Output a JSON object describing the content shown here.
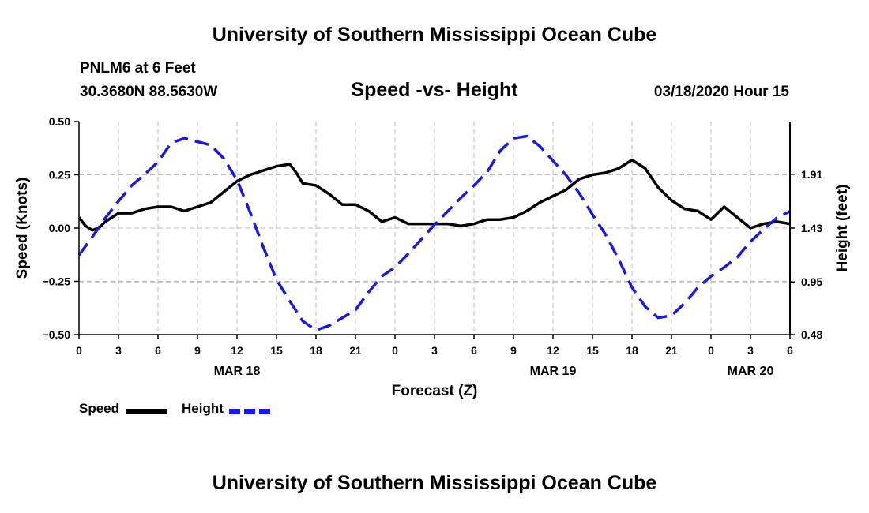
{
  "header": {
    "title": "University of Southern Mississippi Ocean Cube",
    "station": "PNLM6 at 6 Feet",
    "coordinates": "30.3680N 88.5630W",
    "chart_title": "Speed -vs- Height",
    "timestamp": "03/18/2020 Hour 15"
  },
  "footer": {
    "title": "University of Southern Mississippi Ocean Cube"
  },
  "legend": {
    "speed_label": "Speed",
    "height_label": "Height"
  },
  "colors": {
    "speed": "#000000",
    "height": "#1a1adc",
    "grid": "#bbbbbb"
  },
  "chart_data": {
    "type": "line",
    "title": "Speed -vs- Height",
    "xlabel": "Forecast (Z)",
    "ylabel": "Speed (Knots)",
    "ylabel_right": "Height (feet)",
    "x_unit": "hours since 2020-03-18 00Z",
    "xlim": [
      0,
      54
    ],
    "ylim": [
      -0.5,
      0.5
    ],
    "ylim_right": [
      0.48,
      2.38
    ],
    "x_ticks": [
      0,
      3,
      6,
      9,
      12,
      15,
      18,
      21,
      24,
      27,
      30,
      33,
      36,
      39,
      42,
      45,
      48,
      51,
      54
    ],
    "x_tick_labels": [
      "0",
      "3",
      "6",
      "9",
      "12",
      "15",
      "18",
      "21",
      "0",
      "3",
      "6",
      "9",
      "12",
      "15",
      "18",
      "21",
      "0",
      "3",
      "6"
    ],
    "date_labels": [
      {
        "x": 12,
        "label": "MAR 18"
      },
      {
        "x": 36,
        "label": "MAR 19"
      },
      {
        "x": 51,
        "label": "MAR 20"
      }
    ],
    "y_ticks": [
      -0.5,
      -0.25,
      0,
      0.25,
      0.5
    ],
    "y_tick_labels": [
      "-0.50",
      "-0.25",
      "0.00",
      "0.25",
      "0.50"
    ],
    "y_ticks_right": [
      0.48,
      0.95,
      1.43,
      1.91
    ],
    "y_tick_labels_right": [
      "0.48",
      "0.95",
      "1.43",
      "1.91"
    ],
    "grid": true,
    "series": [
      {
        "name": "Speed",
        "axis": "left",
        "style": "solid",
        "x": [
          0,
          0.5,
          1,
          1.5,
          2,
          3,
          4,
          5,
          6,
          7,
          8,
          9,
          10,
          11,
          12,
          13,
          14,
          15,
          16,
          16.5,
          17,
          18,
          19,
          20,
          21,
          22,
          23,
          24,
          25,
          26,
          27,
          28,
          29,
          30,
          31,
          32,
          33,
          34,
          35,
          36,
          37,
          38,
          39,
          40,
          41,
          42,
          43,
          44,
          45,
          46,
          47,
          48,
          49,
          50,
          51,
          52,
          53,
          54
        ],
        "y": [
          0.05,
          0.01,
          -0.01,
          0.0,
          0.03,
          0.07,
          0.07,
          0.09,
          0.1,
          0.1,
          0.08,
          0.1,
          0.12,
          0.17,
          0.22,
          0.25,
          0.27,
          0.29,
          0.3,
          0.26,
          0.21,
          0.2,
          0.16,
          0.11,
          0.11,
          0.08,
          0.03,
          0.05,
          0.02,
          0.02,
          0.02,
          0.02,
          0.01,
          0.02,
          0.04,
          0.04,
          0.05,
          0.08,
          0.12,
          0.15,
          0.18,
          0.23,
          0.25,
          0.26,
          0.28,
          0.32,
          0.28,
          0.19,
          0.13,
          0.09,
          0.08,
          0.04,
          0.1,
          0.05,
          0.0,
          0.02,
          0.03,
          0.02
        ]
      },
      {
        "name": "Height",
        "axis": "right",
        "style": "dashed",
        "x": [
          0,
          1,
          2,
          3,
          4,
          5,
          6,
          7,
          8,
          9,
          10,
          11,
          12,
          13,
          14,
          15,
          16,
          17,
          18,
          19,
          20,
          21,
          22,
          23,
          24,
          25,
          26,
          27,
          28,
          29,
          30,
          31,
          32,
          33,
          34,
          35,
          36,
          37,
          38,
          39,
          40,
          41,
          42,
          43,
          44,
          45,
          46,
          47,
          48,
          49,
          50,
          51,
          52,
          53,
          54
        ],
        "y": [
          1.19,
          1.35,
          1.52,
          1.67,
          1.81,
          1.91,
          2.02,
          2.19,
          2.23,
          2.2,
          2.17,
          2.05,
          1.86,
          1.57,
          1.26,
          0.97,
          0.78,
          0.6,
          0.52,
          0.56,
          0.63,
          0.7,
          0.86,
          1.0,
          1.08,
          1.2,
          1.33,
          1.46,
          1.58,
          1.7,
          1.81,
          1.93,
          2.12,
          2.23,
          2.25,
          2.16,
          2.03,
          1.9,
          1.74,
          1.55,
          1.37,
          1.15,
          0.9,
          0.73,
          0.63,
          0.65,
          0.76,
          0.9,
          1.0,
          1.08,
          1.17,
          1.31,
          1.42,
          1.52,
          1.58
        ]
      }
    ]
  }
}
